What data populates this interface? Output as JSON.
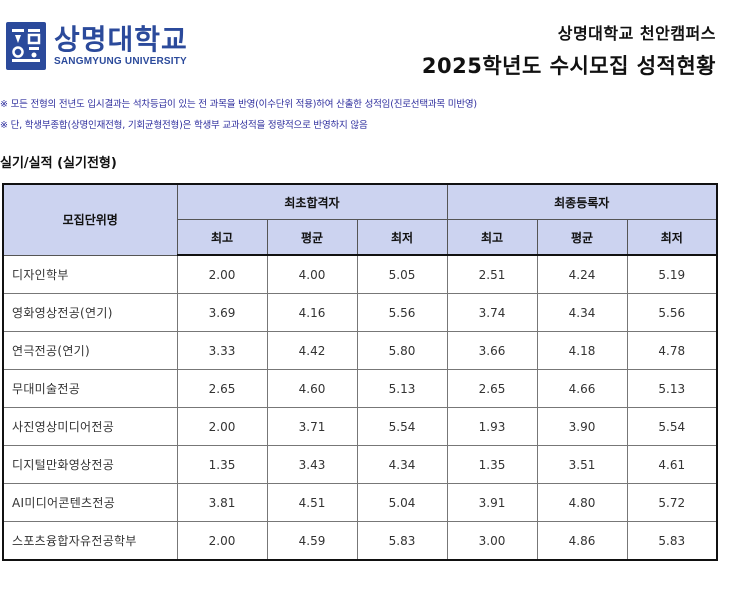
{
  "header": {
    "logo_name": "상명대학교",
    "logo_english": "SANGMYUNG UNIVERSITY",
    "campus": "상명대학교 천안캠퍼스",
    "title": "2025학년도 수시모집 성적현황"
  },
  "notes": [
    "※ 모든 전형의 전년도 입시결과는 석차등급이 있는 전 과목을 반영(이수단위 적용)하여 산출한 성적임(진로선택과목 미반영)",
    "※ 단, 학생부종합(상명인재전형, 기회균형전형)은 학생부 교과성적을 정량적으로 반영하지 않음"
  ],
  "section_title": "실기/실적 (실기전형)",
  "table": {
    "dept_header": "모집단위명",
    "group_headers": [
      "최초합격자",
      "최종등록자"
    ],
    "sub_headers": [
      "최고",
      "평균",
      "최저",
      "최고",
      "평균",
      "최저"
    ],
    "rows": [
      {
        "dept": "디자인학부",
        "values": [
          "2.00",
          "4.00",
          "5.05",
          "2.51",
          "4.24",
          "5.19"
        ]
      },
      {
        "dept": "영화영상전공(연기)",
        "values": [
          "3.69",
          "4.16",
          "5.56",
          "3.74",
          "4.34",
          "5.56"
        ]
      },
      {
        "dept": "연극전공(연기)",
        "values": [
          "3.33",
          "4.42",
          "5.80",
          "3.66",
          "4.18",
          "4.78"
        ]
      },
      {
        "dept": "무대미술전공",
        "values": [
          "2.65",
          "4.60",
          "5.13",
          "2.65",
          "4.66",
          "5.13"
        ]
      },
      {
        "dept": "사진영상미디어전공",
        "values": [
          "2.00",
          "3.71",
          "5.54",
          "1.93",
          "3.90",
          "5.54"
        ]
      },
      {
        "dept": "디지털만화영상전공",
        "values": [
          "1.35",
          "3.43",
          "4.34",
          "1.35",
          "3.51",
          "4.61"
        ]
      },
      {
        "dept": "AI미디어콘텐츠전공",
        "values": [
          "3.81",
          "4.51",
          "5.04",
          "3.91",
          "4.80",
          "5.72"
        ]
      },
      {
        "dept": "스포츠융합자유전공학부",
        "values": [
          "2.00",
          "4.59",
          "5.83",
          "3.00",
          "4.86",
          "5.83"
        ]
      }
    ]
  }
}
